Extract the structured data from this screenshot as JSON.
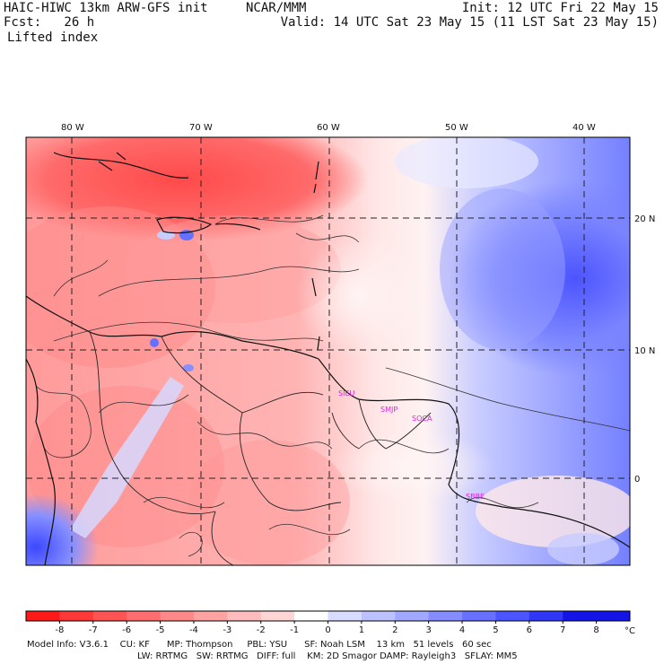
{
  "header": {
    "model": "HAIC-HIWC 13km ARW-GFS init",
    "org": "NCAR/MMM",
    "init": "Init: 12 UTC Fri 22 May 15",
    "fcst": "Fcst:   26 h",
    "valid": "Valid: 14 UTC Sat 23 May 15 (11 LST Sat 23 May 15)",
    "field": "Lifted index"
  },
  "map": {
    "lon_labels": [
      "80 W",
      "70 W",
      "60 W",
      "50 W",
      "40 W"
    ],
    "lat_labels": [
      "20 N",
      "10 N",
      "0"
    ],
    "stations": [
      "SIEU",
      "SMJP",
      "SOCA",
      "SBBE"
    ]
  },
  "colorbar": {
    "ticks": [
      "-8",
      "-7",
      "-6",
      "-5",
      "-4",
      "-3",
      "-2",
      "-1",
      "0",
      "1",
      "2",
      "3",
      "4",
      "5",
      "6",
      "7",
      "8"
    ],
    "unit": "°C",
    "colors": [
      "#ff1a1a",
      "#ff3838",
      "#ff5454",
      "#ff6e6e",
      "#ff8888",
      "#ffa2a2",
      "#ffbcbc",
      "#ffd6d6",
      "#ffffff",
      "#d8dcff",
      "#bcc2ff",
      "#a0a8ff",
      "#848cff",
      "#6870ff",
      "#4c54ff",
      "#3038f5",
      "#1414e6"
    ]
  },
  "footer": {
    "line1": "Model Info: V3.6.1    CU: KF      MP: Thompson     PBL: YSU      SF: Noah LSM    13 km   51 levels   60 sec",
    "line2": "LW: RRTMG   SW: RRTMG   DIFF: full    KM: 2D Smagor DAMP: Rayleigh3   SFLAY: MM5"
  }
}
